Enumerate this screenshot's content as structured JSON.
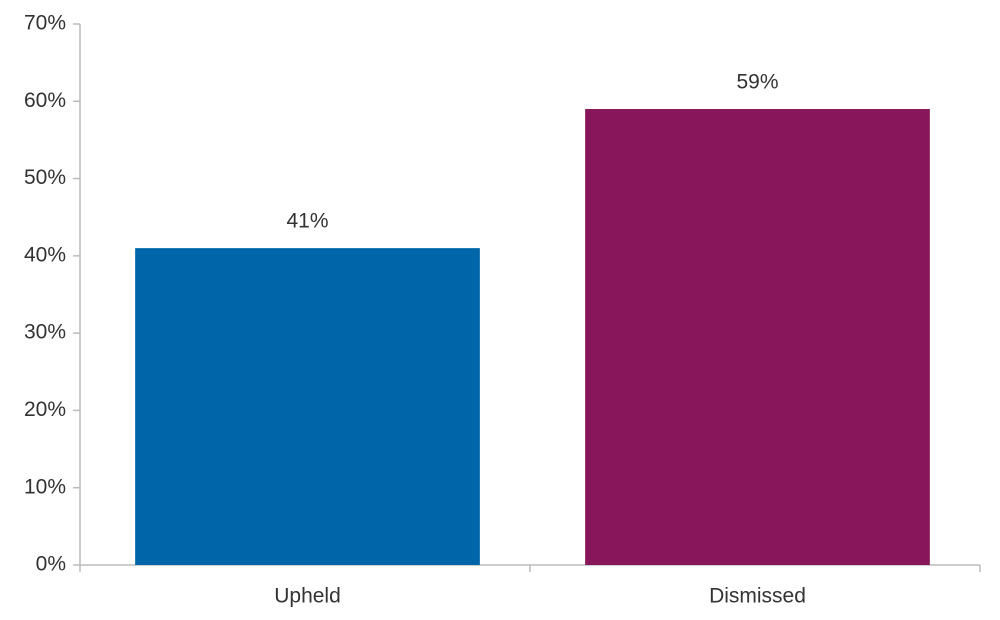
{
  "chart_data": {
    "type": "bar",
    "categories": [
      "Upheld",
      "Dismissed"
    ],
    "values": [
      41,
      59
    ],
    "value_labels": [
      "41%",
      "59%"
    ],
    "colors": [
      "#0066aa",
      "#87175a"
    ],
    "ylim": [
      0,
      70
    ],
    "yticks": [
      {
        "value": 0,
        "label": "0%"
      },
      {
        "value": 10,
        "label": "10%"
      },
      {
        "value": 20,
        "label": "20%"
      },
      {
        "value": 30,
        "label": "30%"
      },
      {
        "value": 40,
        "label": "40%"
      },
      {
        "value": 50,
        "label": "50%"
      },
      {
        "value": 60,
        "label": "60%"
      },
      {
        "value": 70,
        "label": "70%"
      }
    ],
    "grid": false
  }
}
